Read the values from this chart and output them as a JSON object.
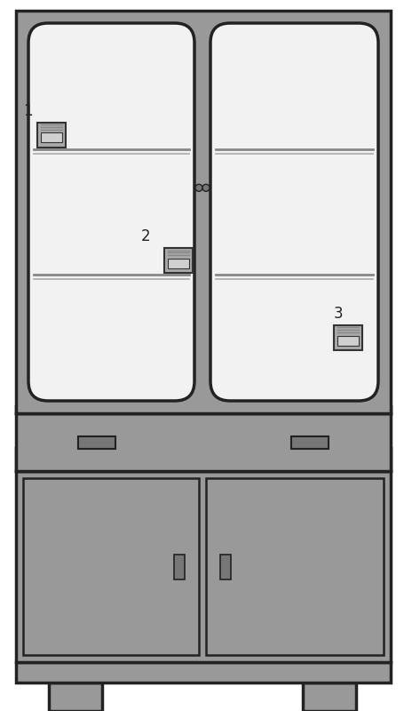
{
  "bg_color": "#ffffff",
  "hutch_color": "#999999",
  "hutch_dark": "#777777",
  "hutch_outline": "#222222",
  "glass_color": "#f2f2f2",
  "glass_outline": "#222222",
  "shelf_color": "#888888",
  "monitor_body": "#aaaaaa",
  "monitor_screen": "#d0d0d0",
  "monitor_outline": "#333333",
  "monitor_lines": "#888888"
}
